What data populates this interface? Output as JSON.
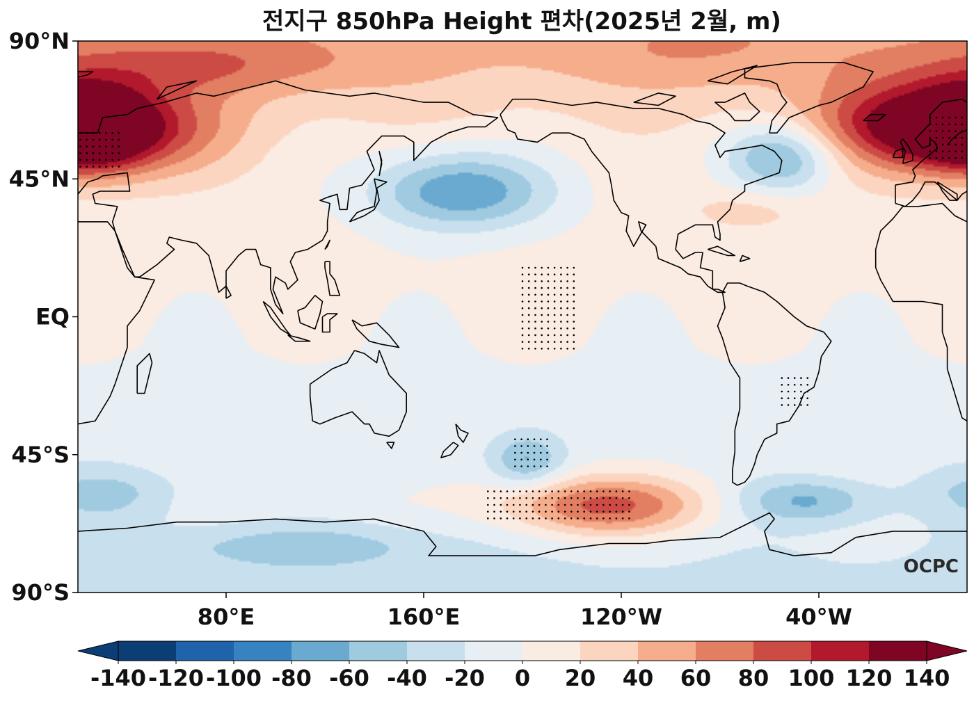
{
  "title": "전지구 850hPa Height 편차(2025년 2월, m)",
  "logo_text": "OCPC",
  "colors": {
    "scale": [
      "#0b3e75",
      "#1f63ab",
      "#3783c0",
      "#6aa9d0",
      "#9fcae0",
      "#c8e0ee",
      "#e8eff4",
      "#faebe3",
      "#fcd5c0",
      "#f5ad8c",
      "#e27f62",
      "#cc4c45",
      "#b2192c",
      "#7e0523"
    ],
    "coast": "#000000",
    "frame": "#000000"
  },
  "chart_data": {
    "type": "heatmap",
    "variable": "850hPa Height anomaly",
    "unit": "m",
    "period": "2025-02",
    "projection": "PlateCarree, central longitude 180",
    "lon_range": [
      20,
      380
    ],
    "lat_range": [
      -90,
      90
    ],
    "y_ticks": [
      {
        "lat": 90,
        "label": "90°N"
      },
      {
        "lat": 45,
        "label": "45°N"
      },
      {
        "lat": 0,
        "label": "EQ"
      },
      {
        "lat": -45,
        "label": "45°S"
      },
      {
        "lat": -90,
        "label": "90°S"
      }
    ],
    "x_ticks": [
      {
        "lon": 80,
        "label": "80°E"
      },
      {
        "lon": 160,
        "label": "160°E"
      },
      {
        "lon": 240,
        "label": "120°W"
      },
      {
        "lon": 320,
        "label": "40°W"
      }
    ],
    "colorbar": {
      "levels": [
        -140,
        -120,
        -100,
        -80,
        -60,
        -40,
        -20,
        0,
        20,
        40,
        60,
        80,
        100,
        120,
        140
      ],
      "labels": [
        "-140",
        "-120",
        "-100",
        "-80",
        "-60",
        "-40",
        "-20",
        "0",
        "20",
        "40",
        "60",
        "80",
        "100",
        "120",
        "140"
      ],
      "extend": "both"
    },
    "background_anomaly": [
      {
        "lat": 90,
        "value": 45
      },
      {
        "lat": 75,
        "value": 30
      },
      {
        "lat": 55,
        "value": 12
      },
      {
        "lat": 30,
        "value": 8
      },
      {
        "lat": 10,
        "value": 4
      },
      {
        "lat": -10,
        "value": 0
      },
      {
        "lat": -20,
        "value": -5
      },
      {
        "lat": -30,
        "value": -8
      },
      {
        "lat": -45,
        "value": -10
      },
      {
        "lat": -60,
        "value": -5
      },
      {
        "lat": -70,
        "value": -15
      },
      {
        "lat": -90,
        "value": -28
      }
    ],
    "anomaly_centers": [
      {
        "region": "Scandinavia / North Atlantic east",
        "lon": 363,
        "lat": 62,
        "value": 130
      },
      {
        "region": "Ural (eastern side)",
        "lon": 25,
        "lat": 62,
        "value": 110
      },
      {
        "region": "Siberia",
        "lon": 48,
        "lat": 60,
        "value": 55
      },
      {
        "region": "Arctic Siberia",
        "lon": 65,
        "lat": 82,
        "value": 45
      },
      {
        "region": "North Pacific",
        "lon": 175,
        "lat": 41,
        "value": -88
      },
      {
        "region": "Labrador Sea",
        "lon": 305,
        "lat": 52,
        "value": -78
      },
      {
        "region": "Canadian Arctic",
        "lon": 270,
        "lat": 85,
        "value": 20
      },
      {
        "region": "Western North Atlantic",
        "lon": 292,
        "lat": 35,
        "value": 22
      },
      {
        "region": "Southeastern Pacific",
        "lon": 233,
        "lat": -62,
        "value": 92
      },
      {
        "region": "Southwestern Pacific",
        "lon": 202,
        "lat": -47,
        "value": -52
      },
      {
        "region": "South Atlantic",
        "lon": 315,
        "lat": -60,
        "value": -58
      },
      {
        "region": "Southern Indian Ocean",
        "lon": 30,
        "lat": -58,
        "value": -42
      },
      {
        "region": "Antarctic edge (Indian sector)",
        "lon": 110,
        "lat": -75,
        "value": -35
      }
    ],
    "significance_regions": [
      {
        "region": "Central tropical Pacific",
        "lon": [
          200,
          222
        ],
        "lat": [
          -12,
          16
        ]
      },
      {
        "region": "Ural",
        "lon": [
          21,
          37
        ],
        "lat": [
          47,
          60
        ]
      },
      {
        "region": "Scandinavia",
        "lon": [
          365,
          380
        ],
        "lat": [
          50,
          65
        ]
      },
      {
        "region": "South America",
        "lon": [
          305,
          317
        ],
        "lat": [
          -30,
          -20
        ]
      },
      {
        "region": "Southwestern Pacific",
        "lon": [
          197,
          211
        ],
        "lat": [
          -50,
          -40
        ]
      },
      {
        "region": "Southeastern Pacific",
        "lon": [
          186,
          245
        ],
        "lat": [
          -68,
          -57
        ]
      }
    ]
  }
}
